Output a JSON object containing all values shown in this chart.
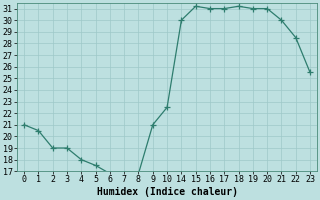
{
  "x": [
    0,
    1,
    2,
    3,
    4,
    5,
    6,
    7,
    8,
    9,
    10,
    14,
    15,
    16,
    17,
    18,
    19,
    20,
    21,
    22,
    23
  ],
  "y": [
    21.0,
    20.5,
    19.0,
    19.0,
    18.0,
    17.5,
    16.8,
    16.8,
    16.8,
    21.0,
    22.5,
    30.0,
    31.2,
    31.0,
    31.0,
    31.2,
    31.0,
    31.0,
    30.0,
    28.5,
    25.5
  ],
  "line_color": "#2e7d6e",
  "marker_color": "#2e7d6e",
  "bg_color": "#bde0e0",
  "grid_color": "#9ec8c8",
  "xlabel": "Humidex (Indice chaleur)",
  "ylim": [
    17,
    31.5
  ],
  "yticks": [
    17,
    18,
    19,
    20,
    21,
    22,
    23,
    24,
    25,
    26,
    27,
    28,
    29,
    30,
    31
  ],
  "font_size": 6,
  "label_font_size": 7
}
